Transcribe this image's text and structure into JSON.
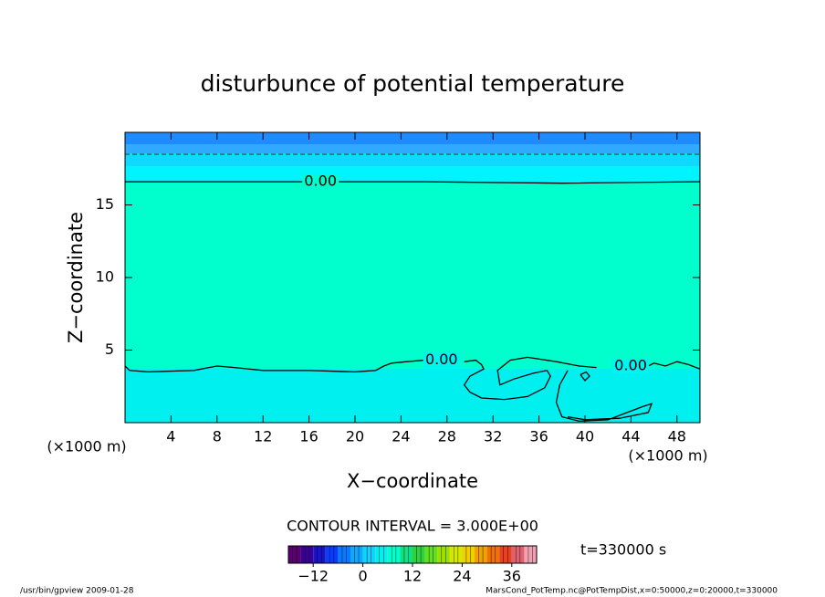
{
  "chart_data": {
    "type": "contour",
    "title": "disturbunce of potential temperature",
    "xlabel": "X−coordinate",
    "ylabel": "Z−coordinate",
    "xunits": "(×1000 m)",
    "xlim": [
      0,
      50
    ],
    "ylim": [
      0,
      20
    ],
    "xticks": [
      4,
      8,
      12,
      16,
      20,
      24,
      28,
      32,
      36,
      40,
      44,
      48
    ],
    "yticks": [
      5,
      10,
      15
    ],
    "contour_label": "0.00",
    "contours": [
      {
        "x": [
          0,
          0.4,
          2,
          6,
          7.3,
          8,
          9.5,
          12,
          16,
          20,
          21.8,
          22.5,
          23.2,
          24.5,
          26
        ],
        "z": [
          3.9,
          3.6,
          3.5,
          3.6,
          3.8,
          3.9,
          3.8,
          3.6,
          3.6,
          3.5,
          3.6,
          3.9,
          4.1,
          4.2,
          4.3
        ]
      },
      {
        "x": [
          29.5,
          30.5,
          31,
          31.2,
          30,
          29.5,
          30,
          31,
          33,
          35,
          36.5,
          37,
          36.7,
          35.5,
          33.8,
          32.6,
          32.4,
          33.5,
          35,
          37.5,
          39.5,
          41
        ],
        "z": [
          4.2,
          4.3,
          4.0,
          3.7,
          3.2,
          2.6,
          2.1,
          1.7,
          1.6,
          1.8,
          2.4,
          3.2,
          3.6,
          3.4,
          3.0,
          2.6,
          3.6,
          4.3,
          4.5,
          4.2,
          3.9,
          3.8
        ]
      },
      {
        "x": [
          45.5,
          46,
          47,
          48,
          49,
          50
        ],
        "z": [
          3.9,
          4.1,
          3.9,
          4.2,
          4.0,
          3.7
        ]
      },
      {
        "x": [
          38.5,
          37.8,
          37.5,
          38,
          39.5,
          42,
          45,
          45.8,
          45.5,
          43,
          40,
          38.5
        ],
        "z": [
          3.6,
          2.6,
          1.4,
          0.4,
          0.1,
          0.2,
          1.1,
          1.3,
          0.7,
          0.3,
          0.2,
          0.4
        ]
      },
      {
        "x": [
          0,
          17,
          26,
          38,
          50
        ],
        "z": [
          16.6,
          16.6,
          16.6,
          16.5,
          16.6
        ]
      },
      {
        "x": [
          39.6,
          40.1,
          40.4,
          40,
          39.6
        ],
        "z": [
          3.3,
          3.5,
          3.2,
          2.9,
          3.3
        ]
      }
    ],
    "contour_interval": "CONTOUR INTERVAL = 3.000E+00",
    "time_label": "t=330000 s",
    "clim": [
      -18,
      42
    ],
    "cticks": [
      {
        "value": -12,
        "label": "−12"
      },
      0,
      12,
      24,
      36
    ],
    "colormap": [
      "#5a0070",
      "#3a0096",
      "#1a14c8",
      "#0a3cff",
      "#0a78ff",
      "#10a8ff",
      "#10d2ff",
      "#00f0f0",
      "#00ffcc",
      "#10e080",
      "#30d040",
      "#60e020",
      "#9ae000",
      "#d4e800",
      "#f0d000",
      "#f0a000",
      "#f07000",
      "#e84020",
      "#e06070",
      "#f0a0b0"
    ],
    "footer_left": "/usr/bin/gpview   2009-01-28",
    "footer_right": "MarsCond_PotTemp.nc@PotTempDist,x=0:50000,z=0:20000,t=330000"
  }
}
